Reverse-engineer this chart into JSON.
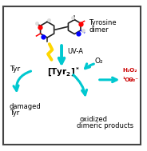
{
  "bg_color": "#ffffff",
  "border_color": "#444444",
  "arrow_color": "#00c8d0",
  "title_line1": "Tyrosine",
  "title_line2": "dimer",
  "uva_text": "UV-A",
  "tyr_text": "Tyr",
  "o2_text": "O₂",
  "damaged_line1": "damaged",
  "damaged_line2": "Tyr",
  "oxidized_line1": "oxidized",
  "oxidized_line2": "dimeric products",
  "h2o2_text": "H₂O₂",
  "o2_singlet_text": "¹O₂",
  "o2_radical_text": "O₂⁻",
  "text_color": "#000000",
  "red_color": "#cc0000",
  "lightning_color": "#FFD700",
  "fig_width": 1.84,
  "fig_height": 1.89,
  "dpi": 100
}
